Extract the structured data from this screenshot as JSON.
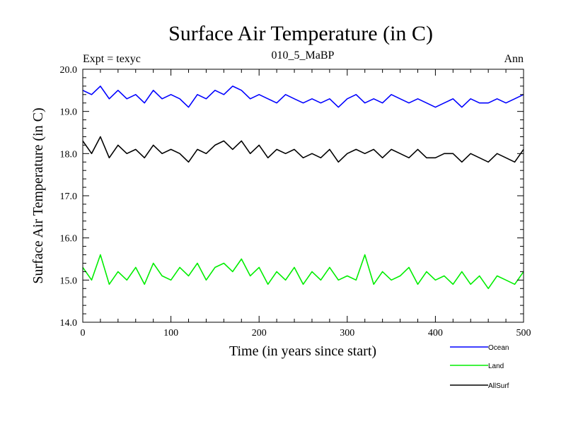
{
  "chart_data": {
    "type": "line",
    "title": "Surface Air Temperature (in C)",
    "subtitle_left": "Expt = texyc",
    "subtitle_center": "010_5_MaBP",
    "subtitle_right": "Ann",
    "xlabel": "Time (in years since start)",
    "ylabel": "Surface Air Temperature (in C)",
    "xlim": [
      0,
      500
    ],
    "ylim": [
      14.0,
      20.0
    ],
    "xticks": [
      0,
      100,
      200,
      300,
      400,
      500
    ],
    "xtick_labels": [
      "0",
      "100",
      "200",
      "300",
      "400",
      "500"
    ],
    "yticks": [
      14.0,
      15.0,
      16.0,
      17.0,
      18.0,
      19.0,
      20.0
    ],
    "ytick_labels": [
      "14.0",
      "15.0",
      "16.0",
      "17.0",
      "18.0",
      "19.0",
      "20.0"
    ],
    "grid": false,
    "legend_position": "bottom-right outside",
    "series": [
      {
        "name": "Ocean",
        "color": "#0000ff",
        "x": [
          0,
          10,
          20,
          30,
          40,
          50,
          60,
          70,
          80,
          90,
          100,
          110,
          120,
          130,
          140,
          150,
          160,
          170,
          180,
          190,
          200,
          210,
          220,
          230,
          240,
          250,
          260,
          270,
          280,
          290,
          300,
          310,
          320,
          330,
          340,
          350,
          360,
          370,
          380,
          390,
          400,
          410,
          420,
          430,
          440,
          450,
          460,
          470,
          480,
          490,
          500
        ],
        "values": [
          19.5,
          19.4,
          19.6,
          19.3,
          19.5,
          19.3,
          19.4,
          19.2,
          19.5,
          19.3,
          19.4,
          19.3,
          19.1,
          19.4,
          19.3,
          19.5,
          19.4,
          19.6,
          19.5,
          19.3,
          19.4,
          19.3,
          19.2,
          19.4,
          19.3,
          19.2,
          19.3,
          19.2,
          19.3,
          19.1,
          19.3,
          19.4,
          19.2,
          19.3,
          19.2,
          19.4,
          19.3,
          19.2,
          19.3,
          19.2,
          19.1,
          19.2,
          19.3,
          19.1,
          19.3,
          19.2,
          19.2,
          19.3,
          19.2,
          19.3,
          19.4
        ]
      },
      {
        "name": "Land",
        "color": "#00ee00",
        "x": [
          0,
          10,
          20,
          30,
          40,
          50,
          60,
          70,
          80,
          90,
          100,
          110,
          120,
          130,
          140,
          150,
          160,
          170,
          180,
          190,
          200,
          210,
          220,
          230,
          240,
          250,
          260,
          270,
          280,
          290,
          300,
          310,
          320,
          330,
          340,
          350,
          360,
          370,
          380,
          390,
          400,
          410,
          420,
          430,
          440,
          450,
          460,
          470,
          480,
          490,
          500
        ],
        "values": [
          15.3,
          15.0,
          15.6,
          14.9,
          15.2,
          15.0,
          15.3,
          14.9,
          15.4,
          15.1,
          15.0,
          15.3,
          15.1,
          15.4,
          15.0,
          15.3,
          15.4,
          15.2,
          15.5,
          15.1,
          15.3,
          14.9,
          15.2,
          15.0,
          15.3,
          14.9,
          15.2,
          15.0,
          15.3,
          15.0,
          15.1,
          15.0,
          15.6,
          14.9,
          15.2,
          15.0,
          15.1,
          15.3,
          14.9,
          15.2,
          15.0,
          15.1,
          14.9,
          15.2,
          14.9,
          15.1,
          14.8,
          15.1,
          15.0,
          14.9,
          15.2
        ]
      },
      {
        "name": "AllSurf",
        "color": "#000000",
        "x": [
          0,
          10,
          20,
          30,
          40,
          50,
          60,
          70,
          80,
          90,
          100,
          110,
          120,
          130,
          140,
          150,
          160,
          170,
          180,
          190,
          200,
          210,
          220,
          230,
          240,
          250,
          260,
          270,
          280,
          290,
          300,
          310,
          320,
          330,
          340,
          350,
          360,
          370,
          380,
          390,
          400,
          410,
          420,
          430,
          440,
          450,
          460,
          470,
          480,
          490,
          500
        ],
        "values": [
          18.3,
          18.0,
          18.4,
          17.9,
          18.2,
          18.0,
          18.1,
          17.9,
          18.2,
          18.0,
          18.1,
          18.0,
          17.8,
          18.1,
          18.0,
          18.2,
          18.3,
          18.1,
          18.3,
          18.0,
          18.2,
          17.9,
          18.1,
          18.0,
          18.1,
          17.9,
          18.0,
          17.9,
          18.1,
          17.8,
          18.0,
          18.1,
          18.0,
          18.1,
          17.9,
          18.1,
          18.0,
          17.9,
          18.1,
          17.9,
          17.9,
          18.0,
          18.0,
          17.8,
          18.0,
          17.9,
          17.8,
          18.0,
          17.9,
          17.8,
          18.1
        ]
      }
    ]
  }
}
